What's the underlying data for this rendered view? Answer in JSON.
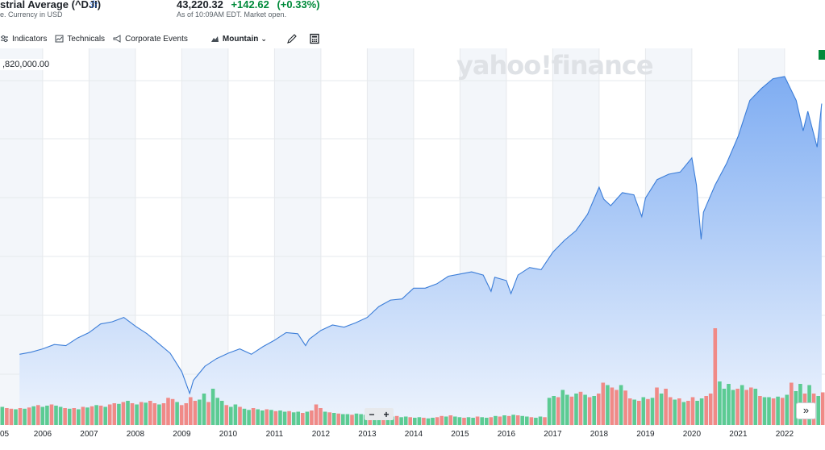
{
  "header": {
    "title": "strial Average (^DJI)",
    "subtitle": "e. Currency in USD",
    "price": "43,220.32",
    "change": "+142.62",
    "change_pct": "(+0.33%)",
    "as_of": "As of 10:09AM EDT. Market open."
  },
  "toolbar": {
    "indicators": "Indicators",
    "technicals": "Technicals",
    "corporate_events": "Corporate Events",
    "chart_type": "Mountain"
  },
  "watermark": "yahoo!finance",
  "crosshair_value": ",820,000.00",
  "zoom": {
    "minus": "−",
    "plus": "+"
  },
  "scroll_label": "»",
  "colors": {
    "line": "#3b7dd8",
    "area_top": "#7fadf2",
    "area_bottom": "#eef4fd",
    "vol_up": "#5ccb93",
    "vol_down": "#f08a87",
    "shade": "#f3f6fa",
    "positive": "#008a3a",
    "accent": "#0f69ff"
  },
  "chart_data": {
    "type": "area",
    "x_ticks": [
      "05",
      "2006",
      "2007",
      "2008",
      "2009",
      "2010",
      "2011",
      "2012",
      "2013",
      "2014",
      "2015",
      "2016",
      "2017",
      "2018",
      "2019",
      "2020",
      "2021",
      "2022"
    ],
    "x": [
      2005.5,
      2005.75,
      2006.0,
      2006.25,
      2006.5,
      2006.75,
      2007.0,
      2007.25,
      2007.5,
      2007.75,
      2008.0,
      2008.25,
      2008.5,
      2008.75,
      2009.0,
      2009.17,
      2009.25,
      2009.5,
      2009.75,
      2010.0,
      2010.25,
      2010.5,
      2010.75,
      2011.0,
      2011.25,
      2011.5,
      2011.67,
      2011.75,
      2012.0,
      2012.25,
      2012.5,
      2012.75,
      2013.0,
      2013.25,
      2013.5,
      2013.75,
      2014.0,
      2014.25,
      2014.5,
      2014.75,
      2015.0,
      2015.25,
      2015.5,
      2015.67,
      2015.75,
      2016.0,
      2016.1,
      2016.25,
      2016.5,
      2016.75,
      2017.0,
      2017.25,
      2017.5,
      2017.75,
      2018.0,
      2018.1,
      2018.25,
      2018.5,
      2018.75,
      2018.92,
      2019.0,
      2019.25,
      2019.5,
      2019.75,
      2020.0,
      2020.1,
      2020.2,
      2020.25,
      2020.5,
      2020.75,
      2021.0,
      2021.25,
      2021.5,
      2021.75,
      2022.0,
      2022.25,
      2022.4,
      2022.5,
      2022.7,
      2022.8
    ],
    "y": [
      10400,
      10600,
      10900,
      11300,
      11200,
      11900,
      12400,
      13200,
      13400,
      13800,
      13000,
      12300,
      11400,
      10500,
      8800,
      6800,
      8000,
      9300,
      10000,
      10500,
      10900,
      10400,
      11100,
      11700,
      12400,
      12300,
      11200,
      11800,
      12600,
      13100,
      12900,
      13300,
      13800,
      14800,
      15400,
      15500,
      16500,
      16500,
      16900,
      17600,
      17800,
      18000,
      17700,
      16200,
      17500,
      17200,
      16000,
      17700,
      18400,
      18200,
      19800,
      20900,
      21800,
      23300,
      25800,
      24700,
      24100,
      25300,
      25100,
      23100,
      24800,
      26500,
      27000,
      27200,
      28500,
      26000,
      21000,
      23500,
      26000,
      28000,
      30500,
      33800,
      34900,
      35800,
      36000,
      33800,
      31000,
      32800,
      29500,
      33500
    ],
    "vol_bars": [
      {
        "v": 0.3,
        "up": true
      },
      {
        "v": 0.28,
        "up": false
      },
      {
        "v": 0.27,
        "up": false
      },
      {
        "v": 0.26,
        "up": true
      },
      {
        "v": 0.28,
        "up": false
      },
      {
        "v": 0.27,
        "up": true
      },
      {
        "v": 0.29,
        "up": false
      },
      {
        "v": 0.31,
        "up": true
      },
      {
        "v": 0.33,
        "up": false
      },
      {
        "v": 0.3,
        "up": true
      },
      {
        "v": 0.32,
        "up": true
      },
      {
        "v": 0.34,
        "up": false
      },
      {
        "v": 0.32,
        "up": true
      },
      {
        "v": 0.3,
        "up": true
      },
      {
        "v": 0.28,
        "up": false
      },
      {
        "v": 0.27,
        "up": true
      },
      {
        "v": 0.28,
        "up": false
      },
      {
        "v": 0.26,
        "up": true
      },
      {
        "v": 0.3,
        "up": false
      },
      {
        "v": 0.29,
        "up": true
      },
      {
        "v": 0.31,
        "up": false
      },
      {
        "v": 0.33,
        "up": true
      },
      {
        "v": 0.32,
        "up": false
      },
      {
        "v": 0.3,
        "up": true
      },
      {
        "v": 0.34,
        "up": false
      },
      {
        "v": 0.36,
        "up": false
      },
      {
        "v": 0.35,
        "up": true
      },
      {
        "v": 0.38,
        "up": false
      },
      {
        "v": 0.4,
        "up": true
      },
      {
        "v": 0.36,
        "up": false
      },
      {
        "v": 0.34,
        "up": true
      },
      {
        "v": 0.38,
        "up": false
      },
      {
        "v": 0.37,
        "up": true
      },
      {
        "v": 0.4,
        "up": false
      },
      {
        "v": 0.36,
        "up": false
      },
      {
        "v": 0.34,
        "up": true
      },
      {
        "v": 0.36,
        "up": false
      },
      {
        "v": 0.45,
        "up": false
      },
      {
        "v": 0.43,
        "up": false
      },
      {
        "v": 0.38,
        "up": true
      },
      {
        "v": 0.33,
        "up": false
      },
      {
        "v": 0.36,
        "up": false
      },
      {
        "v": 0.46,
        "up": false
      },
      {
        "v": 0.4,
        "up": false
      },
      {
        "v": 0.42,
        "up": true
      },
      {
        "v": 0.52,
        "up": true
      },
      {
        "v": 0.38,
        "up": false
      },
      {
        "v": 0.6,
        "up": true
      },
      {
        "v": 0.45,
        "up": true
      },
      {
        "v": 0.4,
        "up": true
      },
      {
        "v": 0.33,
        "up": false
      },
      {
        "v": 0.3,
        "up": true
      },
      {
        "v": 0.34,
        "up": true
      },
      {
        "v": 0.3,
        "up": false
      },
      {
        "v": 0.27,
        "up": true
      },
      {
        "v": 0.25,
        "up": true
      },
      {
        "v": 0.28,
        "up": false
      },
      {
        "v": 0.26,
        "up": true
      },
      {
        "v": 0.24,
        "up": true
      },
      {
        "v": 0.26,
        "up": false
      },
      {
        "v": 0.25,
        "up": true
      },
      {
        "v": 0.23,
        "up": false
      },
      {
        "v": 0.24,
        "up": true
      },
      {
        "v": 0.22,
        "up": true
      },
      {
        "v": 0.23,
        "up": false
      },
      {
        "v": 0.21,
        "up": true
      },
      {
        "v": 0.22,
        "up": true
      },
      {
        "v": 0.2,
        "up": false
      },
      {
        "v": 0.22,
        "up": true
      },
      {
        "v": 0.24,
        "up": false
      },
      {
        "v": 0.34,
        "up": false
      },
      {
        "v": 0.28,
        "up": false
      },
      {
        "v": 0.22,
        "up": true
      },
      {
        "v": 0.21,
        "up": false
      },
      {
        "v": 0.2,
        "up": true
      },
      {
        "v": 0.19,
        "up": false
      },
      {
        "v": 0.18,
        "up": true
      },
      {
        "v": 0.18,
        "up": true
      },
      {
        "v": 0.17,
        "up": false
      },
      {
        "v": 0.19,
        "up": true
      },
      {
        "v": 0.18,
        "up": true
      },
      {
        "v": 0.17,
        "up": true
      },
      {
        "v": 0.16,
        "up": false
      },
      {
        "v": 0.15,
        "up": true
      },
      {
        "v": 0.15,
        "up": true
      },
      {
        "v": 0.16,
        "up": false
      },
      {
        "v": 0.14,
        "up": true
      },
      {
        "v": 0.14,
        "up": true
      },
      {
        "v": 0.15,
        "up": false
      },
      {
        "v": 0.13,
        "up": true
      },
      {
        "v": 0.14,
        "up": true
      },
      {
        "v": 0.13,
        "up": false
      },
      {
        "v": 0.12,
        "up": true
      },
      {
        "v": 0.13,
        "up": true
      },
      {
        "v": 0.12,
        "up": false
      },
      {
        "v": 0.11,
        "up": true
      },
      {
        "v": 0.12,
        "up": true
      },
      {
        "v": 0.13,
        "up": false
      },
      {
        "v": 0.15,
        "up": false
      },
      {
        "v": 0.14,
        "up": true
      },
      {
        "v": 0.16,
        "up": false
      },
      {
        "v": 0.14,
        "up": true
      },
      {
        "v": 0.13,
        "up": true
      },
      {
        "v": 0.12,
        "up": false
      },
      {
        "v": 0.13,
        "up": true
      },
      {
        "v": 0.12,
        "up": true
      },
      {
        "v": 0.14,
        "up": false
      },
      {
        "v": 0.13,
        "up": true
      },
      {
        "v": 0.12,
        "up": true
      },
      {
        "v": 0.13,
        "up": false
      },
      {
        "v": 0.15,
        "up": true
      },
      {
        "v": 0.14,
        "up": false
      },
      {
        "v": 0.16,
        "up": true
      },
      {
        "v": 0.15,
        "up": false
      },
      {
        "v": 0.17,
        "up": true
      },
      {
        "v": 0.16,
        "up": false
      },
      {
        "v": 0.15,
        "up": true
      },
      {
        "v": 0.14,
        "up": true
      },
      {
        "v": 0.13,
        "up": false
      },
      {
        "v": 0.12,
        "up": true
      },
      {
        "v": 0.14,
        "up": true
      },
      {
        "v": 0.13,
        "up": false
      },
      {
        "v": 0.45,
        "up": true
      },
      {
        "v": 0.48,
        "up": true
      },
      {
        "v": 0.46,
        "up": false
      },
      {
        "v": 0.58,
        "up": true
      },
      {
        "v": 0.5,
        "up": true
      },
      {
        "v": 0.47,
        "up": false
      },
      {
        "v": 0.52,
        "up": true
      },
      {
        "v": 0.55,
        "up": false
      },
      {
        "v": 0.5,
        "up": true
      },
      {
        "v": 0.46,
        "up": false
      },
      {
        "v": 0.48,
        "up": true
      },
      {
        "v": 0.52,
        "up": false
      },
      {
        "v": 0.7,
        "up": false
      },
      {
        "v": 0.66,
        "up": true
      },
      {
        "v": 0.62,
        "up": false
      },
      {
        "v": 0.58,
        "up": false
      },
      {
        "v": 0.66,
        "up": true
      },
      {
        "v": 0.57,
        "up": false
      },
      {
        "v": 0.44,
        "up": false
      },
      {
        "v": 0.42,
        "up": true
      },
      {
        "v": 0.4,
        "up": false
      },
      {
        "v": 0.46,
        "up": true
      },
      {
        "v": 0.43,
        "up": false
      },
      {
        "v": 0.45,
        "up": true
      },
      {
        "v": 0.62,
        "up": false
      },
      {
        "v": 0.52,
        "up": true
      },
      {
        "v": 0.6,
        "up": false
      },
      {
        "v": 0.46,
        "up": false
      },
      {
        "v": 0.42,
        "up": true
      },
      {
        "v": 0.44,
        "up": false
      },
      {
        "v": 0.38,
        "up": true
      },
      {
        "v": 0.4,
        "up": false
      },
      {
        "v": 0.46,
        "up": false
      },
      {
        "v": 0.4,
        "up": true
      },
      {
        "v": 0.44,
        "up": true
      },
      {
        "v": 0.48,
        "up": false
      },
      {
        "v": 0.52,
        "up": false
      },
      {
        "v": 1.6,
        "up": false
      },
      {
        "v": 0.72,
        "up": true
      },
      {
        "v": 0.6,
        "up": true
      },
      {
        "v": 0.68,
        "up": true
      },
      {
        "v": 0.58,
        "up": true
      },
      {
        "v": 0.6,
        "up": false
      },
      {
        "v": 0.66,
        "up": true
      },
      {
        "v": 0.58,
        "up": false
      },
      {
        "v": 0.62,
        "up": false
      },
      {
        "v": 0.6,
        "up": true
      },
      {
        "v": 0.48,
        "up": false
      },
      {
        "v": 0.46,
        "up": true
      },
      {
        "v": 0.46,
        "up": true
      },
      {
        "v": 0.44,
        "up": false
      },
      {
        "v": 0.47,
        "up": true
      },
      {
        "v": 0.45,
        "up": false
      },
      {
        "v": 0.5,
        "up": true
      },
      {
        "v": 0.7,
        "up": false
      },
      {
        "v": 0.56,
        "up": true
      },
      {
        "v": 0.68,
        "up": true
      },
      {
        "v": 0.52,
        "up": false
      },
      {
        "v": 0.66,
        "up": true
      },
      {
        "v": 0.52,
        "up": false
      },
      {
        "v": 0.48,
        "up": true
      },
      {
        "v": 0.54,
        "up": false
      }
    ],
    "shaded_years": [
      2005,
      2007,
      2009,
      2011,
      2013,
      2015,
      2017,
      2019,
      2021
    ]
  }
}
